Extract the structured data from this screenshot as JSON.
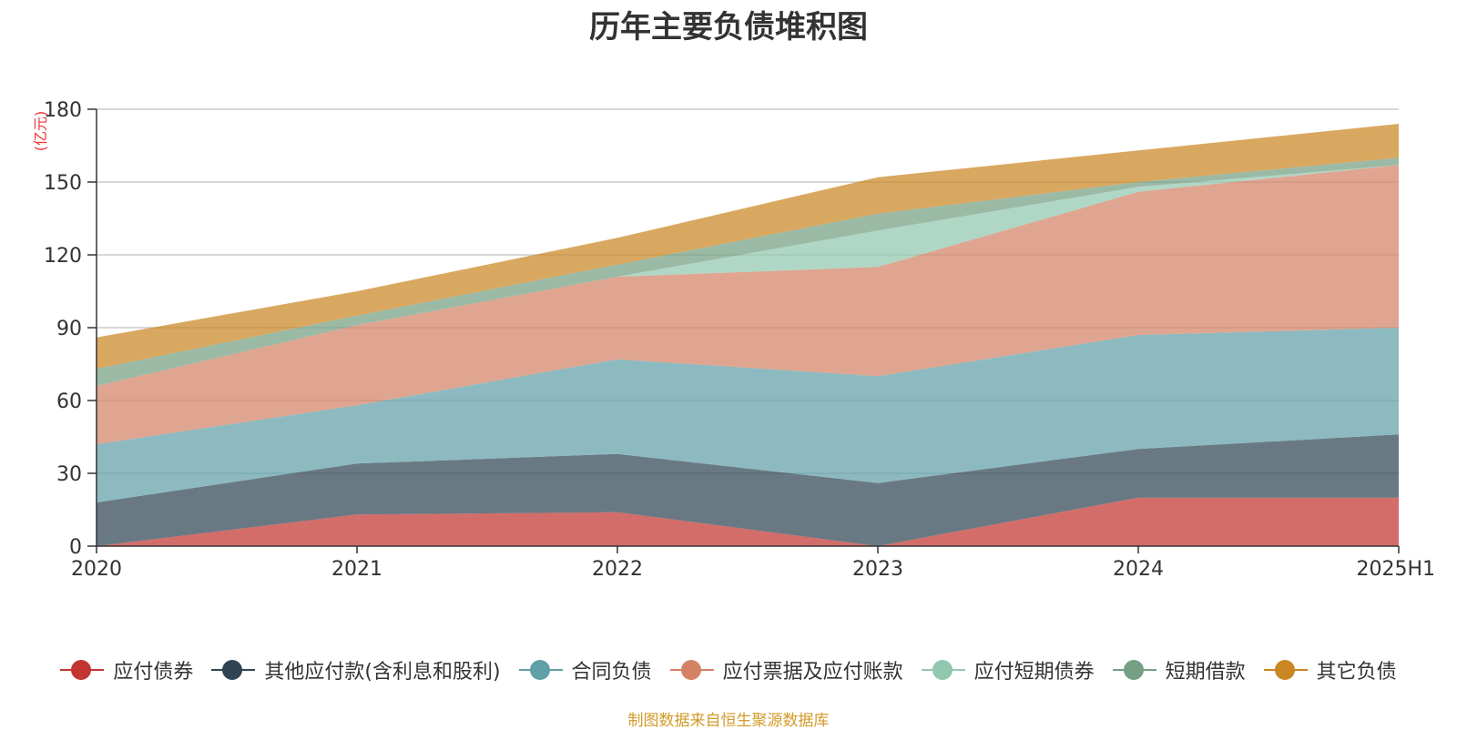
{
  "chart_data": {
    "type": "area",
    "stacked": true,
    "title": "历年主要负债堆积图",
    "unit": "(亿元)",
    "categories": [
      "2020",
      "2021",
      "2022",
      "2023",
      "2024",
      "2025H1"
    ],
    "y_ticks": [
      "0",
      "30",
      "60",
      "90",
      "120",
      "150",
      "180"
    ],
    "ylim": [
      0,
      180
    ],
    "grid": true,
    "legend_position": "bottom",
    "series": [
      {
        "name": "应付债券",
        "color": "#c23531",
        "values": [
          0,
          13,
          14,
          0,
          20,
          20
        ]
      },
      {
        "name": "其他应付款(含利息和股利)",
        "color": "#2f4554",
        "values": [
          18,
          21,
          24,
          26,
          20,
          26
        ]
      },
      {
        "name": "合同负债",
        "color": "#61a0a8",
        "values": [
          24,
          24,
          39,
          44,
          47,
          44
        ]
      },
      {
        "name": "应付票据及应付账款",
        "color": "#d48265",
        "values": [
          24,
          33,
          34,
          45,
          59,
          67
        ]
      },
      {
        "name": "应付短期债券",
        "color": "#91c7ae",
        "values": [
          0,
          0,
          0,
          15,
          2,
          0
        ]
      },
      {
        "name": "短期借款",
        "color": "#749f83",
        "values": [
          7,
          4,
          5,
          7,
          2,
          3
        ]
      },
      {
        "name": "其它负债",
        "color": "#ca8622",
        "values": [
          13,
          10,
          11,
          15,
          13,
          14
        ]
      }
    ]
  },
  "source_note": "制图数据来自恒生聚源数据库"
}
